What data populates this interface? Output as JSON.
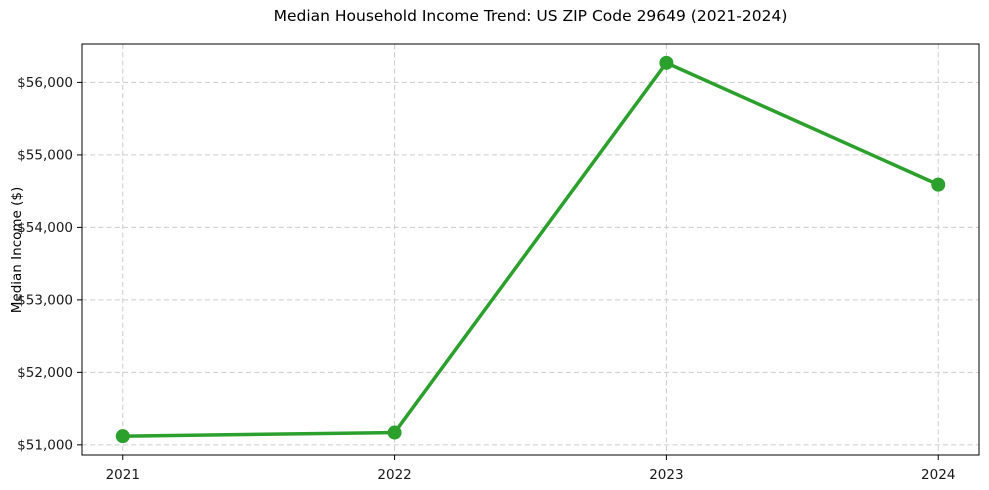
{
  "chart_data": {
    "type": "line",
    "title": "Median Household Income Trend: US ZIP Code 29649 (2021-2024)",
    "xlabel": "",
    "ylabel": "Median Income ($)",
    "x": [
      2021,
      2022,
      2023,
      2024
    ],
    "x_labels": [
      "2021",
      "2022",
      "2023",
      "2024"
    ],
    "series": [
      {
        "name": "Median Household Income",
        "values": [
          51120,
          51170,
          56270,
          54590
        ]
      }
    ],
    "yticks": [
      51000,
      52000,
      53000,
      54000,
      55000,
      56000
    ],
    "ytick_labels": [
      "$51,000",
      "$52,000",
      "$53,000",
      "$54,000",
      "$55,000",
      "$56,000"
    ],
    "xlim": [
      2020.85,
      2024.15
    ],
    "ylim": [
      50860,
      56530
    ],
    "grid": true,
    "grid_style": "dashed",
    "legend_position": "none",
    "colors": {
      "line": "#2ca02c",
      "marker": "#2ca02c",
      "grid": "#cccccc",
      "axis": "#000000",
      "text": "#1a1a1a",
      "background": "#ffffff"
    },
    "line_width": 3.5,
    "marker_radius": 7
  }
}
